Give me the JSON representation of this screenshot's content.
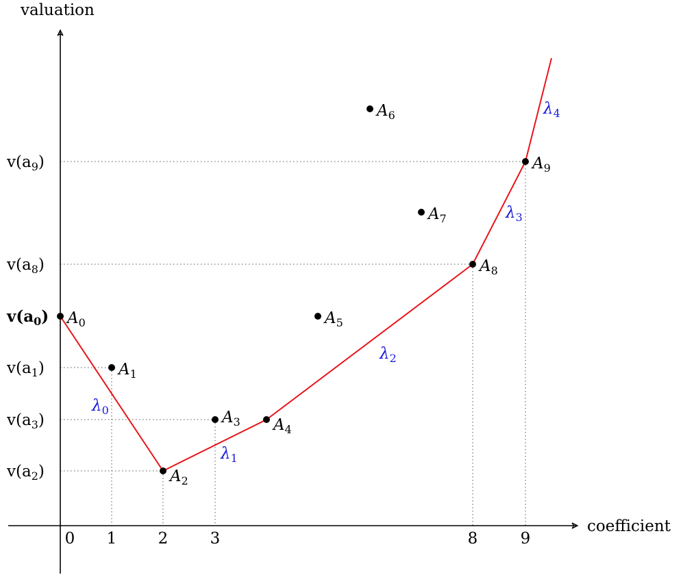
{
  "axes": {
    "x_label": "coefficient",
    "y_label": "valuation"
  },
  "x_ticks": [
    "0",
    "1",
    "2",
    "3",
    "8",
    "9"
  ],
  "y_ticks": [
    {
      "id": "a9",
      "base": "v(a",
      "sub": "9",
      "end": ")"
    },
    {
      "id": "a8",
      "base": "v(a",
      "sub": "8",
      "end": ")"
    },
    {
      "id": "a0",
      "base": "v(a",
      "sub": "0",
      "end": ")"
    },
    {
      "id": "a1",
      "base": "v(a",
      "sub": "1",
      "end": ")"
    },
    {
      "id": "a3",
      "base": "v(a",
      "sub": "3",
      "end": ")"
    },
    {
      "id": "a2",
      "base": "v(a",
      "sub": "2",
      "end": ")"
    }
  ],
  "points": [
    {
      "name": "A",
      "sub": "0"
    },
    {
      "name": "A",
      "sub": "1"
    },
    {
      "name": "A",
      "sub": "2"
    },
    {
      "name": "A",
      "sub": "3"
    },
    {
      "name": "A",
      "sub": "4"
    },
    {
      "name": "A",
      "sub": "5"
    },
    {
      "name": "A",
      "sub": "6"
    },
    {
      "name": "A",
      "sub": "7"
    },
    {
      "name": "A",
      "sub": "8"
    },
    {
      "name": "A",
      "sub": "9"
    }
  ],
  "slopes": [
    {
      "name": "λ",
      "sub": "0"
    },
    {
      "name": "λ",
      "sub": "1"
    },
    {
      "name": "λ",
      "sub": "2"
    },
    {
      "name": "λ",
      "sub": "3"
    },
    {
      "name": "λ",
      "sub": "4"
    }
  ],
  "colors": {
    "polygon": "#e8141a",
    "slope_label": "#1a1adb",
    "points": "#000000",
    "guides": "#555555"
  }
}
